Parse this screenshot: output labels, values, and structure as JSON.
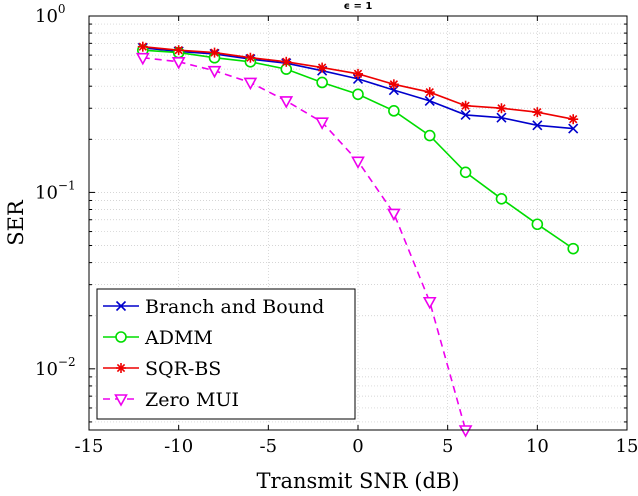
{
  "chart_data": {
    "type": "line",
    "title": "ϵ = 1",
    "xlabel": "Transmit SNR (dB)",
    "ylabel": "SER",
    "xlim": [
      -15,
      15
    ],
    "ylim": [
      0.0045,
      1
    ],
    "yscale": "log",
    "grid": true,
    "legend_position": "bottom-left",
    "x_ticks": [
      {
        "value": -15,
        "label": "-15"
      },
      {
        "value": -10,
        "label": "-10"
      },
      {
        "value": -5,
        "label": "-5"
      },
      {
        "value": 0,
        "label": "0"
      },
      {
        "value": 5,
        "label": "5"
      },
      {
        "value": 10,
        "label": "10"
      },
      {
        "value": 15,
        "label": "15"
      }
    ],
    "y_ticks": [
      {
        "value": 1,
        "base": "10",
        "exp": "0"
      },
      {
        "value": 0.1,
        "base": "10",
        "exp": "−1"
      },
      {
        "value": 0.01,
        "base": "10",
        "exp": "−2"
      }
    ],
    "series": [
      {
        "name": "Branch and Bound",
        "color": "#0000cc",
        "marker": "x",
        "dashed": false,
        "x": [
          -12,
          -10,
          -8,
          -6,
          -4,
          -2,
          0,
          2,
          4,
          6,
          8,
          10,
          12
        ],
        "values": [
          0.66,
          0.63,
          0.61,
          0.57,
          0.54,
          0.49,
          0.44,
          0.38,
          0.33,
          0.275,
          0.265,
          0.24,
          0.23
        ]
      },
      {
        "name": "ADMM",
        "color": "#00dd00",
        "marker": "o",
        "dashed": false,
        "x": [
          -12,
          -10,
          -8,
          -6,
          -4,
          -2,
          0,
          2,
          4,
          6,
          8,
          10,
          12
        ],
        "values": [
          0.64,
          0.62,
          0.58,
          0.55,
          0.5,
          0.42,
          0.36,
          0.29,
          0.21,
          0.13,
          0.092,
          0.066,
          0.048
        ]
      },
      {
        "name": "SQR-BS",
        "color": "#ee0000",
        "marker": "*",
        "dashed": false,
        "x": [
          -12,
          -10,
          -8,
          -6,
          -4,
          -2,
          0,
          2,
          4,
          6,
          8,
          10,
          12
        ],
        "values": [
          0.67,
          0.64,
          0.62,
          0.58,
          0.55,
          0.51,
          0.47,
          0.41,
          0.37,
          0.31,
          0.3,
          0.285,
          0.26
        ]
      },
      {
        "name": "Zero MUI",
        "color": "#ee00ee",
        "marker": "v",
        "dashed": true,
        "x": [
          -12,
          -10,
          -8,
          -6,
          -4,
          -2,
          0,
          2,
          4,
          6
        ],
        "values": [
          0.58,
          0.55,
          0.49,
          0.42,
          0.33,
          0.25,
          0.15,
          0.076,
          0.024,
          0.0045
        ]
      }
    ]
  }
}
